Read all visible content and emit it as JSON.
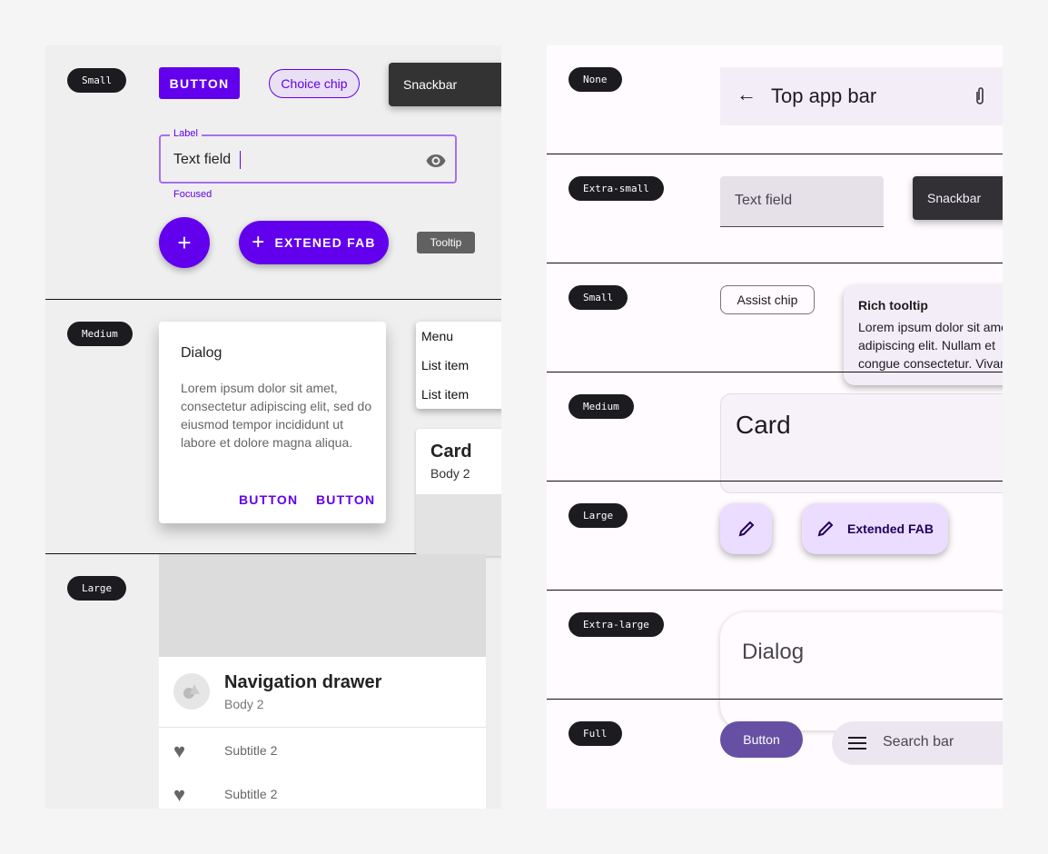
{
  "left": {
    "badges": {
      "small": "Small",
      "medium": "Medium",
      "large": "Large"
    },
    "button": "BUTTON",
    "choice_chip": "Choice chip",
    "snackbar": "Snackbar",
    "text_field": {
      "label": "Label",
      "value": "Text field",
      "helper": "Focused"
    },
    "extended_fab": "EXTENED FAB",
    "tooltip": "Tooltip",
    "dialog": {
      "title": "Dialog",
      "body": "Lorem ipsum dolor sit amet, consectetur adipiscing elit, sed do eiusmod tempor incididunt ut labore et dolore magna aliqua.",
      "buttons": [
        "BUTTON",
        "BUTTON"
      ]
    },
    "menu": {
      "title": "Menu",
      "items": [
        "List item",
        "List item"
      ]
    },
    "card": {
      "title": "Card",
      "body": "Body 2"
    },
    "nav_drawer": {
      "title": "Navigation drawer",
      "body": "Body 2",
      "items": [
        "Subtitle 2",
        "Subtitle 2"
      ]
    },
    "colors": {
      "primary": "#6200ee"
    }
  },
  "right": {
    "badges": {
      "none": "None",
      "extra_small": "Extra-small",
      "small": "Small",
      "medium": "Medium",
      "large": "Large",
      "extra_large": "Extra-large",
      "full": "Full"
    },
    "top_app_bar": "Top app bar",
    "text_field": "Text field",
    "snackbar": "Snackbar",
    "assist_chip": "Assist chip",
    "rich_tooltip": {
      "title": "Rich tooltip",
      "lines": [
        "Lorem ipsum dolor sit amet, consectetur",
        "adipiscing elit. Nullam et",
        "congue consectetur. Vivamus"
      ]
    },
    "card": "Card",
    "extended_fab": "Extended FAB",
    "dialog": "Dialog",
    "button": "Button",
    "search_bar": "Search bar",
    "colors": {
      "primary": "#6750a4",
      "surface": "#fffbfe"
    }
  }
}
